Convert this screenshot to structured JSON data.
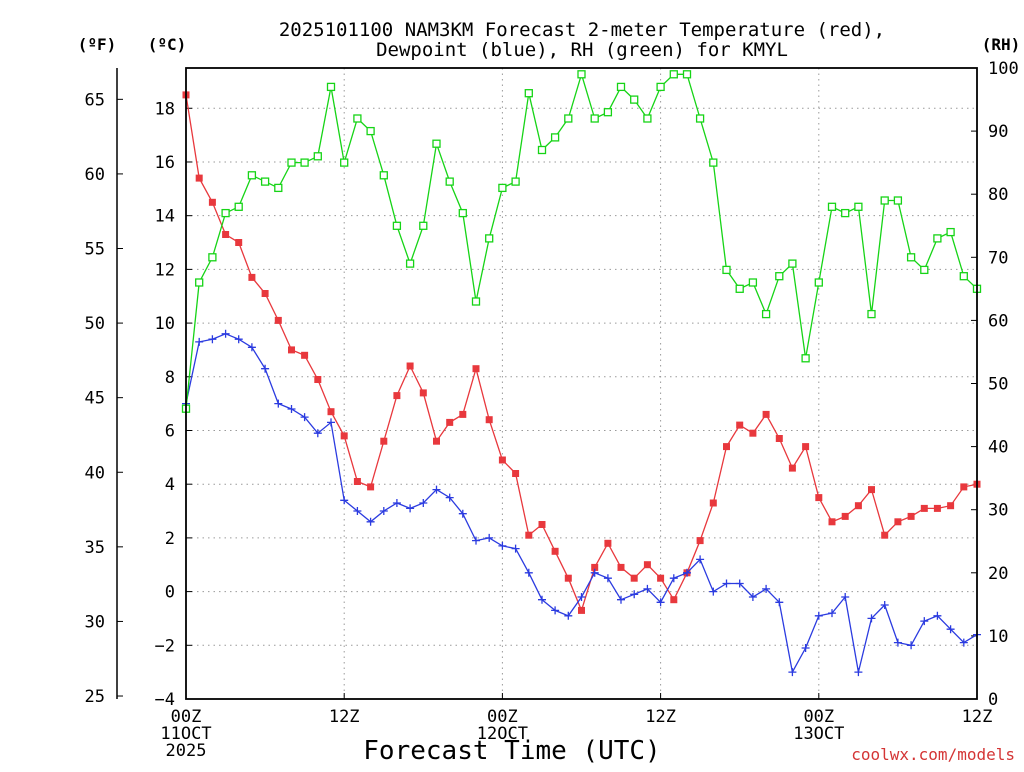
{
  "chart_data": {
    "type": "line",
    "title": [
      "2025101100 NAM3KM Forecast 2-meter Temperature (red),",
      "Dewpoint (blue), RH (green) for KMYL"
    ],
    "xlabel": "Forecast Time (UTC)",
    "units": {
      "fahrenheit": "(ºF)",
      "celsius": "(ºC)",
      "rh": "(RH)"
    },
    "credit": "coolwx.com/models",
    "x_hours": [
      0,
      1,
      2,
      3,
      4,
      5,
      6,
      7,
      8,
      9,
      10,
      11,
      12,
      13,
      14,
      15,
      16,
      17,
      18,
      19,
      20,
      21,
      22,
      23,
      24,
      25,
      26,
      27,
      28,
      29,
      30,
      31,
      32,
      33,
      34,
      35,
      36,
      37,
      38,
      39,
      40,
      41,
      42,
      43,
      44,
      45,
      46,
      47,
      48,
      49,
      50,
      51,
      52,
      53,
      54,
      55,
      56,
      57,
      58,
      59,
      60
    ],
    "xlim": [
      0,
      60
    ],
    "ylim_c": [
      -4,
      19.5
    ],
    "ylim_rh": [
      0,
      100
    ],
    "ylim_f": [
      24.8,
      67.1
    ],
    "x_ticks": [
      {
        "hour": 0,
        "lines": [
          "00Z",
          "11OCT",
          "2025"
        ]
      },
      {
        "hour": 12,
        "lines": [
          "12Z"
        ]
      },
      {
        "hour": 24,
        "lines": [
          "00Z",
          "12OCT"
        ]
      },
      {
        "hour": 36,
        "lines": [
          "12Z"
        ]
      },
      {
        "hour": 48,
        "lines": [
          "00Z",
          "13OCT"
        ]
      },
      {
        "hour": 60,
        "lines": [
          "12Z"
        ]
      }
    ],
    "celsius_ticks": [
      "-4",
      "-2",
      "0",
      "2",
      "4",
      "6",
      "8",
      "10",
      "12",
      "14",
      "16",
      "18"
    ],
    "fahrenheit_ticks": [
      "25",
      "30",
      "35",
      "40",
      "45",
      "50",
      "55",
      "60",
      "65"
    ],
    "rh_ticks": [
      "0",
      "10",
      "20",
      "30",
      "40",
      "50",
      "60",
      "70",
      "80",
      "90",
      "100"
    ],
    "series": [
      {
        "name": "Temperature",
        "unit": "C",
        "color": "#e8383d",
        "marker": "filled-square",
        "values": [
          18.5,
          15.4,
          14.5,
          13.3,
          13.0,
          11.7,
          11.1,
          10.1,
          9.0,
          8.8,
          7.9,
          6.7,
          5.8,
          4.1,
          3.9,
          5.6,
          7.3,
          8.4,
          7.4,
          5.6,
          6.3,
          6.6,
          8.3,
          6.4,
          4.9,
          4.4,
          2.1,
          2.5,
          1.5,
          0.5,
          -0.7,
          0.9,
          1.8,
          0.9,
          0.5,
          1.0,
          0.5,
          -0.3,
          0.7,
          1.9,
          3.3,
          5.4,
          6.2,
          5.9,
          6.6,
          5.7,
          4.6,
          5.4,
          3.5,
          2.6,
          2.8,
          3.2,
          3.8,
          2.1,
          2.6,
          2.8,
          3.1,
          3.1,
          3.2,
          3.9,
          4.0
        ]
      },
      {
        "name": "Dewpoint",
        "unit": "C",
        "color": "#2b3be0",
        "marker": "plus",
        "values": [
          7.0,
          9.3,
          9.4,
          9.6,
          9.4,
          9.1,
          8.3,
          7.0,
          6.8,
          6.5,
          5.9,
          6.3,
          3.4,
          3.0,
          2.6,
          3.0,
          3.3,
          3.1,
          3.3,
          3.8,
          3.5,
          2.9,
          1.9,
          2.0,
          1.7,
          1.6,
          0.7,
          -0.3,
          -0.7,
          -0.9,
          -0.2,
          0.7,
          0.5,
          -0.3,
          -0.1,
          0.1,
          -0.4,
          0.5,
          0.7,
          1.2,
          0.0,
          0.3,
          0.3,
          -0.2,
          0.1,
          -0.4,
          -3.0,
          -2.1,
          -0.9,
          -0.8,
          -0.2,
          -3.0,
          -1.0,
          -0.5,
          -1.9,
          -2.0,
          -1.1,
          -0.9,
          -1.4,
          -1.9,
          -1.6
        ]
      },
      {
        "name": "Relative Humidity",
        "unit": "%",
        "color": "#16d416",
        "marker": "open-square",
        "values": [
          46,
          66,
          70,
          77,
          78,
          83,
          82,
          81,
          85,
          85,
          86,
          97,
          85,
          92,
          90,
          83,
          75,
          69,
          75,
          88,
          82,
          77,
          63,
          73,
          81,
          82,
          96,
          87,
          89,
          92,
          99,
          92,
          93,
          97,
          95,
          92,
          97,
          99,
          99,
          92,
          85,
          68,
          65,
          66,
          61,
          67,
          69,
          54,
          66,
          78,
          77,
          78,
          61,
          79,
          79,
          70,
          68,
          73,
          74,
          67,
          65
        ]
      }
    ]
  }
}
